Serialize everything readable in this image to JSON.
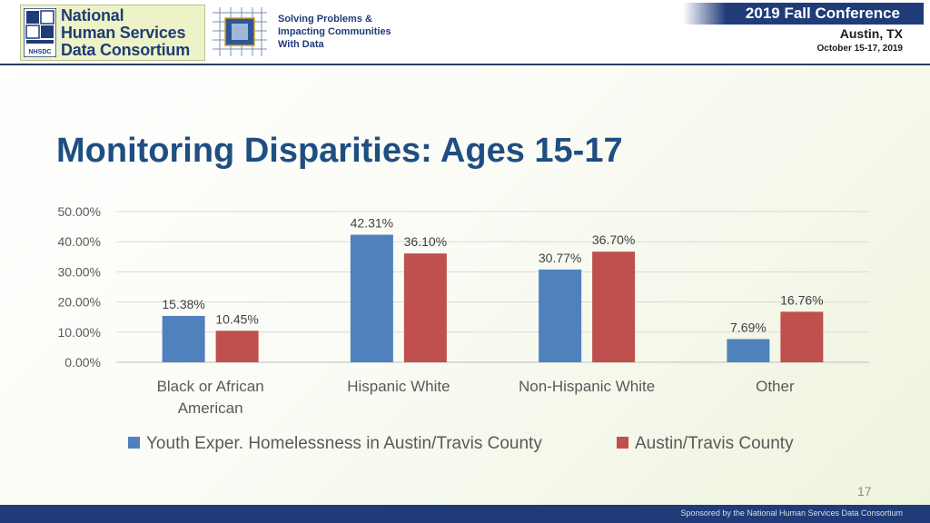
{
  "header": {
    "logo_lines": [
      "National",
      "Human Services",
      "Data Consortium"
    ],
    "logo_acronym": "NHSDC",
    "tagline_lines": [
      "Solving Problems &",
      "Impacting Communities",
      "With Data"
    ],
    "conference": "2019 Fall Conference",
    "city": "Austin, TX",
    "dates": "October 15-17, 2019"
  },
  "slide": {
    "title": "Monitoring Disparities: Ages 15-17",
    "page_number": "17",
    "footer": "Sponsored by the National Human Services Data Consortium"
  },
  "colors": {
    "series1": "#4f81bd",
    "series2": "#c0504d",
    "title": "#1f4e82",
    "navy": "#1f3c78"
  },
  "chart_data": {
    "type": "bar",
    "categories": [
      [
        "Black or African",
        "American"
      ],
      [
        "Hispanic White"
      ],
      [
        "Non-Hispanic White"
      ],
      [
        "Other"
      ]
    ],
    "series": [
      {
        "name": "Youth Exper. Homelessness in Austin/Travis County",
        "values": [
          15.38,
          42.31,
          30.77,
          7.69
        ],
        "labels": [
          "15.38%",
          "42.31%",
          "30.77%",
          "7.69%"
        ]
      },
      {
        "name": "Austin/Travis County",
        "values": [
          10.45,
          36.1,
          36.7,
          16.76
        ],
        "labels": [
          "10.45%",
          "36.10%",
          "36.70%",
          "16.76%"
        ]
      }
    ],
    "yticks": [
      "0.00%",
      "10.00%",
      "20.00%",
      "30.00%",
      "40.00%",
      "50.00%"
    ],
    "ylim": [
      0,
      50
    ],
    "grid": true,
    "legend_position": "bottom"
  }
}
